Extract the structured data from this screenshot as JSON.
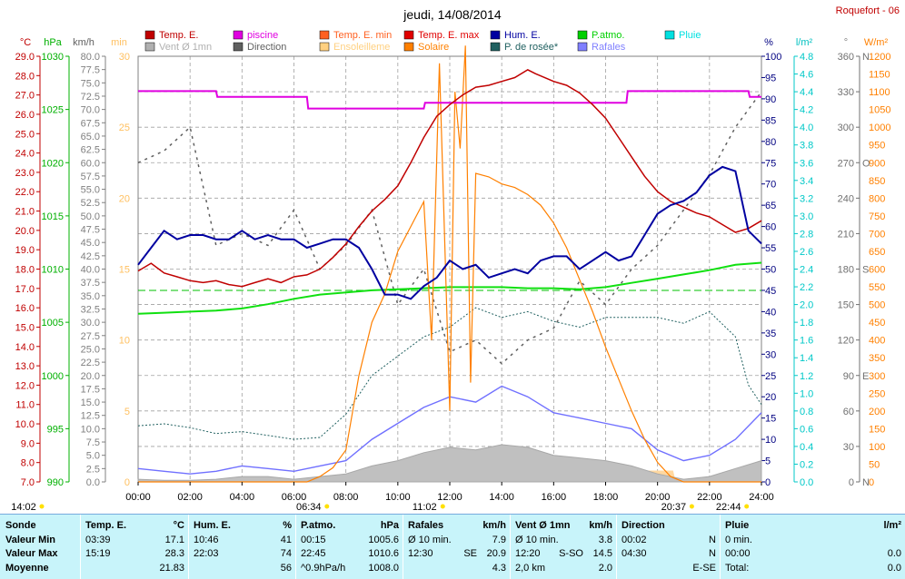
{
  "header": {
    "title": "jeudi, 14/08/2014",
    "station": "Roquefort - 06"
  },
  "legend": [
    {
      "label": "Temp. E.",
      "color": "#c00000"
    },
    {
      "label": "piscine",
      "color": "#e000e0"
    },
    {
      "label": "Temp. E. min",
      "color": "#ff6020"
    },
    {
      "label": "Temp. E. max",
      "color": "#e00000"
    },
    {
      "label": "Hum. E.",
      "color": "#0000a0"
    },
    {
      "label": "P.atmo.",
      "color": "#00d000"
    },
    {
      "label": "Pluie",
      "color": "#00e0e0"
    },
    {
      "label": "Vent Ø 1mn",
      "color": "#b0b0b0"
    },
    {
      "label": "Direction",
      "color": "#606060"
    },
    {
      "label": "Ensoleilleme",
      "color": "#ffd080"
    },
    {
      "label": "Solaire",
      "color": "#ff8000"
    },
    {
      "label": "P. de rosée*",
      "color": "#206060"
    },
    {
      "label": "Rafales",
      "color": "#8080ff"
    }
  ],
  "axis_units": {
    "temp": "°C",
    "pressure": "hPa",
    "wind": "km/h",
    "minutes": "min",
    "humidity": "%",
    "rain": "l/m²",
    "direction": "°",
    "solar": "W/m²"
  },
  "axes": {
    "temp_ticks": [
      "29.0",
      "28.0",
      "27.0",
      "26.0",
      "25.0",
      "24.0",
      "23.0",
      "22.0",
      "21.0",
      "20.0",
      "19.0",
      "18.0",
      "17.0",
      "16.0",
      "15.0",
      "14.0",
      "13.0",
      "12.0",
      "11.0",
      "10.0",
      "9.0",
      "8.0",
      "7.0"
    ],
    "pressure_ticks": [
      "1030",
      "1025",
      "1020",
      "1015",
      "1010",
      "1005",
      "1000",
      "995",
      "990"
    ],
    "wind_ticks": [
      "80.0",
      "77.5",
      "75.0",
      "72.5",
      "70.0",
      "67.5",
      "65.0",
      "62.5",
      "60.0",
      "57.5",
      "55.0",
      "52.5",
      "50.0",
      "47.5",
      "45.0",
      "42.5",
      "40.0",
      "37.5",
      "35.0",
      "32.5",
      "30.0",
      "27.5",
      "25.0",
      "22.5",
      "20.0",
      "17.5",
      "15.0",
      "12.5",
      "10.0",
      "7.5",
      "5.0",
      "2.5",
      "0.0"
    ],
    "minute_ticks": [
      "30",
      "25",
      "20",
      "15",
      "10",
      "5",
      "0"
    ],
    "humidity_ticks": [
      "100",
      "95",
      "90",
      "85",
      "80",
      "75",
      "70",
      "65",
      "60",
      "55",
      "50",
      "45",
      "40",
      "35",
      "30",
      "25",
      "20",
      "15",
      "10",
      "5",
      "0"
    ],
    "rain_ticks": [
      "4.8",
      "4.6",
      "4.4",
      "4.2",
      "4.0",
      "3.8",
      "3.6",
      "3.4",
      "3.2",
      "3.0",
      "2.8",
      "2.6",
      "2.4",
      "2.2",
      "2.0",
      "1.8",
      "1.6",
      "1.4",
      "1.2",
      "1.0",
      "0.8",
      "0.6",
      "0.4",
      "0.2",
      "0.0"
    ],
    "direction_ticks": [
      "360",
      "330",
      "300",
      "270",
      "240",
      "210",
      "180",
      "150",
      "120",
      "90",
      "60",
      "30",
      "0"
    ],
    "direction_letters": [
      "N",
      "",
      "",
      "O",
      "",
      "",
      "S",
      "",
      "",
      "E",
      "",
      "",
      "N"
    ],
    "solar_ticks": [
      "1200",
      "1150",
      "1100",
      "1050",
      "1000",
      "950",
      "900",
      "850",
      "800",
      "750",
      "700",
      "650",
      "600",
      "550",
      "500",
      "450",
      "400",
      "350",
      "300",
      "250",
      "200",
      "150",
      "100",
      "50",
      "0"
    ],
    "time_ticks": [
      "00:00",
      "02:00",
      "04:00",
      "06:00",
      "08:00",
      "10:00",
      "12:00",
      "14:00",
      "16:00",
      "18:00",
      "20:00",
      "22:00",
      "24:00"
    ],
    "time_markers": [
      {
        "label": "14:02",
        "t": 0.15
      },
      {
        "label": "06:34",
        "t": 6.57
      },
      {
        "label": "11:02",
        "t": 11.03
      },
      {
        "label": "20:37",
        "t": 20.62
      },
      {
        "label": "22:44",
        "t": 22.73
      }
    ]
  },
  "chart_data": {
    "type": "line",
    "title": "jeudi, 14/08/2014",
    "x_unit": "hour",
    "x_range": [
      0,
      24
    ],
    "series": [
      {
        "name": "Temp. E.",
        "axis": "temp",
        "ylim": [
          7,
          29
        ],
        "x": [
          0,
          0.5,
          1,
          1.5,
          2,
          2.5,
          3,
          3.5,
          4,
          4.5,
          5,
          5.5,
          6,
          6.5,
          7,
          7.5,
          8,
          8.5,
          9,
          9.5,
          10,
          10.5,
          11,
          11.5,
          12,
          12.5,
          13,
          13.5,
          14,
          14.5,
          15,
          15.3,
          16,
          16.5,
          17,
          17.5,
          18,
          18.5,
          19,
          19.5,
          20,
          20.5,
          21,
          21.5,
          22,
          22.5,
          23,
          23.5,
          24
        ],
        "y": [
          17.9,
          18.3,
          17.8,
          17.6,
          17.4,
          17.3,
          17.4,
          17.2,
          17.1,
          17.3,
          17.5,
          17.3,
          17.6,
          17.7,
          18.0,
          18.6,
          19.3,
          20.2,
          21.0,
          21.6,
          22.3,
          23.5,
          24.8,
          25.9,
          26.5,
          27.0,
          27.4,
          27.5,
          27.7,
          27.9,
          28.3,
          28.1,
          27.7,
          27.5,
          27.1,
          26.5,
          25.8,
          24.8,
          23.8,
          22.8,
          22.0,
          21.5,
          21.2,
          20.9,
          20.7,
          20.3,
          19.9,
          20.1,
          20.5
        ]
      },
      {
        "name": "piscine",
        "axis": "temp",
        "ylim": [
          7,
          29
        ],
        "x": [
          0,
          3,
          3.05,
          6.5,
          6.55,
          11,
          11.05,
          18.8,
          18.85,
          23.5,
          23.55,
          24
        ],
        "y": [
          27.2,
          27.2,
          26.9,
          26.9,
          26.3,
          26.3,
          26.6,
          26.6,
          27.2,
          27.2,
          26.9,
          26.9
        ]
      },
      {
        "name": "Hum. E.",
        "axis": "humidity",
        "ylim": [
          0,
          100
        ],
        "x": [
          0,
          0.5,
          1,
          1.5,
          2,
          2.5,
          3,
          3.5,
          4,
          4.5,
          5,
          5.5,
          6,
          6.5,
          7,
          7.5,
          8,
          8.5,
          9,
          9.5,
          10,
          10.5,
          11,
          11.5,
          12,
          12.5,
          13,
          13.5,
          14,
          14.5,
          15,
          15.5,
          16,
          16.5,
          17,
          17.5,
          18,
          18.5,
          19,
          19.5,
          20,
          20.5,
          21,
          21.5,
          22,
          22.5,
          23,
          23.5,
          24
        ],
        "y": [
          51,
          55,
          59,
          57,
          58,
          58,
          57,
          57,
          59,
          57,
          58,
          57,
          57,
          55,
          56,
          57,
          57,
          55,
          50,
          44,
          44,
          43,
          46,
          48,
          52,
          50,
          51,
          48,
          49,
          50,
          49,
          52,
          53,
          53,
          50,
          52,
          54,
          52,
          53,
          58,
          63,
          65,
          66,
          68,
          72,
          74,
          73,
          59,
          56
        ]
      },
      {
        "name": "P.atmo.",
        "axis": "pressure",
        "ylim": [
          990,
          1030
        ],
        "x": [
          0,
          1,
          2,
          3,
          4,
          5,
          6,
          7,
          8,
          9,
          10,
          11,
          12,
          13,
          14,
          15,
          16,
          17,
          18,
          19,
          20,
          21,
          22,
          23,
          24
        ],
        "y": [
          1005.8,
          1005.9,
          1006.0,
          1006.1,
          1006.3,
          1006.7,
          1007.2,
          1007.6,
          1007.8,
          1008.0,
          1008.1,
          1008.2,
          1008.3,
          1008.3,
          1008.3,
          1008.2,
          1008.2,
          1008.1,
          1008.3,
          1008.7,
          1009.1,
          1009.5,
          1009.9,
          1010.4,
          1010.6
        ]
      },
      {
        "name": "Solaire",
        "axis": "solar",
        "ylim": [
          0,
          1200
        ],
        "x": [
          0,
          6.5,
          7,
          7.5,
          8,
          8.5,
          9,
          9.5,
          10,
          10.5,
          11,
          11.3,
          11.6,
          12,
          12.2,
          12.4,
          12.6,
          12.8,
          13,
          13.5,
          14,
          14.5,
          15,
          15.5,
          16,
          16.5,
          17,
          17.5,
          18,
          18.5,
          19,
          19.5,
          20,
          20.5,
          21,
          24
        ],
        "y": [
          0,
          0,
          15,
          40,
          90,
          300,
          450,
          530,
          650,
          720,
          790,
          400,
          1180,
          200,
          1100,
          940,
          1230,
          280,
          870,
          860,
          840,
          830,
          810,
          780,
          730,
          660,
          570,
          480,
          380,
          290,
          200,
          120,
          55,
          15,
          0,
          0
        ]
      },
      {
        "name": "P. de rosée*",
        "axis": "temp",
        "ylim": [
          7,
          29
        ],
        "x": [
          0,
          1,
          2,
          3,
          4,
          5,
          6,
          7,
          8,
          9,
          10,
          11,
          12,
          13,
          14,
          15,
          16,
          17,
          18,
          19,
          20,
          21,
          22,
          23,
          23.5,
          24
        ],
        "y": [
          9.9,
          10.0,
          9.8,
          9.5,
          9.6,
          9.4,
          9.2,
          9.3,
          10.5,
          12.5,
          13.5,
          14.5,
          15.0,
          16.0,
          15.5,
          15.8,
          15.3,
          15.0,
          15.5,
          15.5,
          15.5,
          15.2,
          15.8,
          14.5,
          12.0,
          11.0
        ]
      },
      {
        "name": "Rafales",
        "axis": "wind",
        "ylim": [
          0,
          80
        ],
        "x": [
          0,
          1,
          2,
          3,
          4,
          5,
          6,
          7,
          8,
          9,
          10,
          11,
          12,
          13,
          14,
          15,
          16,
          17,
          18,
          19,
          20,
          21,
          22,
          23,
          24
        ],
        "y": [
          2.5,
          2.0,
          1.5,
          2.0,
          3.0,
          2.5,
          2.0,
          3.0,
          4.0,
          8.0,
          11.0,
          14.0,
          16.0,
          15.0,
          18.0,
          16.0,
          13.0,
          12.0,
          11.0,
          10.0,
          6.0,
          4.0,
          5.0,
          8.0,
          13.0
        ]
      },
      {
        "name": "Vent Ø 1mn",
        "axis": "wind",
        "ylim": [
          0,
          80
        ],
        "x": [
          0,
          1,
          2,
          3,
          4,
          5,
          6,
          7,
          8,
          9,
          10,
          11,
          12,
          13,
          14,
          15,
          16,
          17,
          18,
          19,
          20,
          21,
          22,
          23,
          24
        ],
        "y": [
          0.5,
          0.3,
          0.3,
          0.5,
          1.0,
          1.0,
          0.5,
          1.0,
          1.5,
          3.0,
          4.0,
          5.5,
          6.5,
          6.0,
          7.0,
          6.5,
          5.0,
          4.5,
          4.0,
          3.0,
          1.5,
          0.5,
          1.0,
          2.5,
          4.0
        ]
      },
      {
        "name": "Direction",
        "axis": "direction",
        "ylim": [
          0,
          360
        ],
        "x": [
          0,
          1,
          2,
          3,
          4,
          5,
          6,
          7,
          8,
          9,
          10,
          11,
          12,
          13,
          14,
          15,
          16,
          17,
          18,
          19,
          20,
          21,
          22,
          23,
          24
        ],
        "y": [
          270,
          280,
          300,
          200,
          210,
          200,
          230,
          180,
          200,
          230,
          150,
          180,
          110,
          120,
          100,
          120,
          130,
          170,
          150,
          180,
          200,
          230,
          260,
          300,
          330
        ]
      },
      {
        "name": "Ensoleilleme",
        "axis": "minutes",
        "ylim": [
          0,
          30
        ],
        "x": [
          0,
          8.7,
          8.8,
          20.6,
          20.7,
          24
        ],
        "y": [
          0,
          0,
          0.8,
          0.8,
          0,
          0
        ]
      }
    ]
  },
  "table": {
    "headers": [
      {
        "label": "Sonde",
        "unit": ""
      },
      {
        "label": "Temp. E.",
        "unit": "°C"
      },
      {
        "label": "Hum. E.",
        "unit": "%"
      },
      {
        "label": "P.atmo.",
        "unit": "hPa"
      },
      {
        "label": "Rafales",
        "unit": "km/h"
      },
      {
        "label": "Vent Ø 1mn",
        "unit": "km/h"
      },
      {
        "label": "Direction",
        "unit": ""
      },
      {
        "label": "Pluie",
        "unit": "l/m²"
      }
    ],
    "row_labels": [
      "Valeur Min",
      "Valeur Max",
      "Moyenne"
    ],
    "temp": [
      [
        "03:39",
        "17.1"
      ],
      [
        "15:19",
        "28.3"
      ],
      [
        "",
        "21.83"
      ]
    ],
    "hum": [
      [
        "10:46",
        "41"
      ],
      [
        "22:03",
        "74"
      ],
      [
        "",
        "56"
      ]
    ],
    "patmo": [
      [
        "00:15",
        "1005.6"
      ],
      [
        "22:45",
        "1010.6"
      ],
      [
        "^0.9hPa/h",
        "1008.0"
      ]
    ],
    "rafales": [
      [
        "Ø 10 min.",
        "",
        "7.9"
      ],
      [
        "12:30",
        "SE",
        "20.9"
      ],
      [
        "",
        "",
        "4.3"
      ]
    ],
    "vent": [
      [
        "Ø 10 min.",
        "",
        "3.8"
      ],
      [
        "12:20",
        "S-SO",
        "14.5"
      ],
      [
        "2,0 km",
        "",
        "2.0"
      ]
    ],
    "direction": [
      [
        "00:02",
        "N"
      ],
      [
        "04:30",
        "N"
      ],
      [
        "",
        "E-SE"
      ]
    ],
    "pluie": [
      [
        "0 min.",
        ""
      ],
      [
        "00:00",
        "0.0"
      ],
      [
        "Total:",
        "0.0"
      ]
    ]
  }
}
